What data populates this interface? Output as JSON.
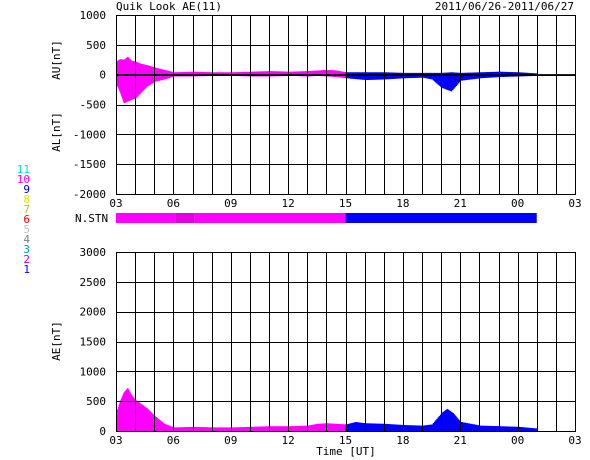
{
  "header": {
    "title": "Quik Look AE(11)",
    "date_range": "2011/06/26-2011/06/27"
  },
  "legend": {
    "items": [
      {
        "label": "11",
        "color": "#00e0e0"
      },
      {
        "label": "10",
        "color": "#ff00ff"
      },
      {
        "label": "9",
        "color": "#0000c0"
      },
      {
        "label": "8",
        "color": "#e0e000"
      },
      {
        "label": "7",
        "color": "#c0c000"
      },
      {
        "label": "6",
        "color": "#ff0000"
      },
      {
        "label": "5",
        "color": "#c0c0c0"
      },
      {
        "label": "4",
        "color": "#808080"
      },
      {
        "label": "3",
        "color": "#00a0a0"
      },
      {
        "label": "2",
        "color": "#c000c0"
      },
      {
        "label": "1",
        "color": "#0000ff"
      }
    ]
  },
  "stn": {
    "label": "N.STN",
    "segments": [
      {
        "from": 3,
        "to": 6.1,
        "color": "#ff00ff"
      },
      {
        "from": 6.1,
        "to": 7.1,
        "color": "#e000e0"
      },
      {
        "from": 7.1,
        "to": 15,
        "color": "#ff00ff"
      },
      {
        "from": 15,
        "to": 25,
        "color": "#0000ff"
      }
    ]
  },
  "chart_data": [
    {
      "type": "area",
      "ylabel_top": "AU[nT]",
      "ylabel_bottom": "AL[nT]",
      "ylim": [
        -2000,
        1000
      ],
      "yticks": [
        1000,
        500,
        0,
        -500,
        -1000,
        -1500,
        -2000
      ],
      "xlim": [
        3,
        27
      ],
      "xticks": [
        "03",
        "06",
        "09",
        "12",
        "15",
        "18",
        "21",
        "00",
        "03"
      ],
      "grid": true,
      "colors": {
        "before_15": "#ff00ff",
        "after_15": "#0000ff"
      },
      "series": [
        {
          "x": [
            3.0,
            3.2,
            3.4,
            3.6,
            3.8,
            4.0,
            4.3,
            4.6,
            5.0,
            5.5,
            6.0,
            7.0,
            8.0,
            9.0,
            10.0,
            11.0,
            12.0,
            13.0,
            13.5,
            14.0,
            14.5,
            15.0,
            16.0,
            17.0,
            18.0,
            19.0,
            19.5,
            20.0,
            20.5,
            21.0,
            22.0,
            23.0,
            24.0,
            25.0
          ],
          "values": [
            220,
            260,
            250,
            300,
            230,
            220,
            180,
            160,
            120,
            80,
            40,
            50,
            40,
            40,
            50,
            60,
            50,
            60,
            70,
            80,
            70,
            40,
            40,
            40,
            30,
            30,
            30,
            30,
            40,
            30,
            40,
            50,
            40,
            20
          ]
        },
        {
          "x": [
            3.0,
            3.2,
            3.4,
            3.6,
            3.8,
            4.0,
            4.3,
            4.6,
            5.0,
            5.5,
            6.0,
            7.0,
            8.0,
            9.0,
            10.0,
            11.0,
            12.0,
            13.0,
            13.5,
            14.0,
            14.5,
            15.0,
            16.0,
            17.0,
            18.0,
            19.0,
            19.5,
            20.0,
            20.5,
            21.0,
            22.0,
            23.0,
            24.0,
            25.0
          ],
          "values": [
            -150,
            -300,
            -480,
            -450,
            -420,
            -400,
            -300,
            -200,
            -120,
            -80,
            -30,
            -30,
            -20,
            -20,
            -30,
            -30,
            -20,
            -30,
            -20,
            -30,
            -40,
            -60,
            -90,
            -80,
            -60,
            -50,
            -80,
            -220,
            -280,
            -100,
            -60,
            -40,
            -30,
            -20
          ]
        }
      ]
    },
    {
      "type": "area",
      "ylabel": "AE[nT]",
      "ylim": [
        0,
        3000
      ],
      "yticks": [
        3000,
        2500,
        2000,
        1500,
        1000,
        500,
        0
      ],
      "xlabel": "Time [UT]",
      "xlim": [
        3,
        27
      ],
      "xticks": [
        "03",
        "06",
        "09",
        "12",
        "15",
        "18",
        "21",
        "00",
        "03"
      ],
      "grid": true,
      "series": [
        {
          "x": [
            3.0,
            3.2,
            3.4,
            3.6,
            3.8,
            4.0,
            4.3,
            4.6,
            5.0,
            5.5,
            6.0,
            7.0,
            8.0,
            9.0,
            10.0,
            11.0,
            12.0,
            13.0,
            13.5,
            14.0,
            14.5,
            15.0,
            15.5,
            16.0,
            17.0,
            18.0,
            19.0,
            19.5,
            20.0,
            20.3,
            20.6,
            21.0,
            22.0,
            23.0,
            24.0,
            25.0
          ],
          "values": [
            300,
            500,
            650,
            720,
            600,
            520,
            450,
            380,
            250,
            120,
            60,
            70,
            60,
            60,
            70,
            80,
            80,
            90,
            120,
            130,
            120,
            110,
            150,
            130,
            120,
            100,
            90,
            110,
            300,
            370,
            300,
            150,
            90,
            80,
            70,
            40
          ]
        }
      ]
    }
  ]
}
